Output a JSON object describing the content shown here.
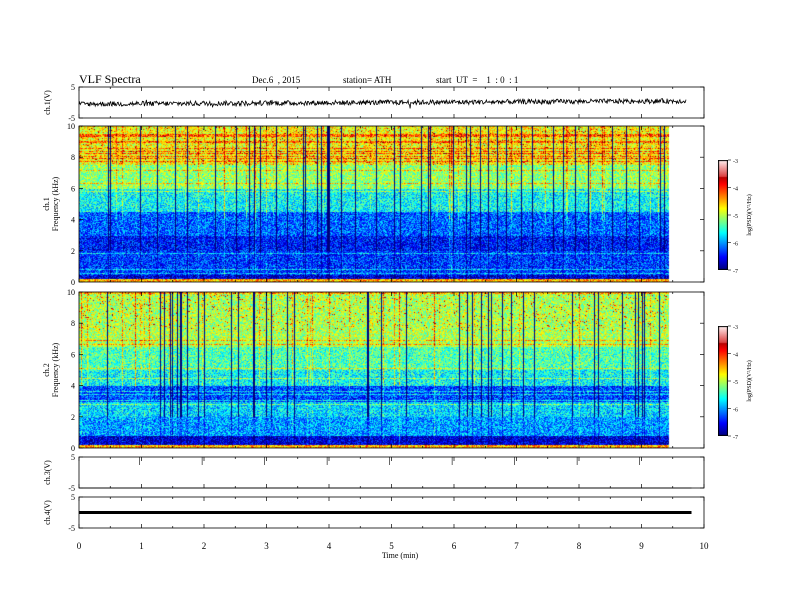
{
  "header": {
    "title": "VLF  Spectra",
    "date": "Dec.6  , 2015",
    "station": "station= ATH",
    "start": "start  UT  =    1  : 0  : 1"
  },
  "chart_data": [
    {
      "type": "line",
      "panel": "ch1-waveform",
      "ylabel": "ch.1(V)",
      "ylim": [
        -5,
        5
      ],
      "yticks": [
        5,
        -5
      ],
      "xlim": [
        0,
        10
      ],
      "description_level": 0.2,
      "series": [
        {
          "values_note_start_end": [
            -0.5,
            0.5
          ]
        }
      ]
    },
    {
      "type": "heatmap",
      "panel": "ch1-spectrogram",
      "ylabel": "ch.1\nFrequency  (kHz)",
      "ylabel_line1": "ch.1",
      "ylabel_line2": "Frequency  (kHz)",
      "ylim": [
        0,
        10
      ],
      "yticks": [
        0,
        2,
        4,
        6,
        8,
        10
      ],
      "xlim": [
        0,
        10
      ],
      "colorbar": {
        "label": "log(PSD)(V²/Hz)",
        "range": [
          -7,
          -3
        ],
        "ticks": [
          -3,
          -4,
          -5,
          -6,
          -7
        ]
      }
    },
    {
      "type": "heatmap",
      "panel": "ch2-spectrogram",
      "ylabel_line1": "ch.2",
      "ylabel_line2": "Frequency  (kHz)",
      "ylim": [
        0,
        10
      ],
      "yticks": [
        0,
        2,
        4,
        6,
        8,
        10
      ],
      "xlim": [
        0,
        10
      ],
      "colorbar": {
        "label": "log(PSD)(V²/Hz)",
        "range": [
          -7,
          -3
        ],
        "ticks": [
          -3,
          -4,
          -5,
          -6,
          -7
        ]
      }
    },
    {
      "type": "line",
      "panel": "ch3-waveform",
      "ylabel": "ch.3(V)",
      "ylim": [
        -5,
        5
      ],
      "yticks": [
        5,
        -5
      ],
      "xlim": [
        0,
        10
      ]
    },
    {
      "type": "line",
      "panel": "ch4-waveform",
      "ylabel": "ch.4(V)",
      "ylim": [
        -5,
        5
      ],
      "yticks": [
        5,
        -5
      ],
      "xlim": [
        0,
        10
      ],
      "level": 0
    }
  ],
  "xaxis": {
    "label": "Time  (min)",
    "ticks": [
      0,
      1,
      2,
      3,
      4,
      5,
      6,
      7,
      8,
      9,
      10
    ],
    "data_end": 9.8
  }
}
